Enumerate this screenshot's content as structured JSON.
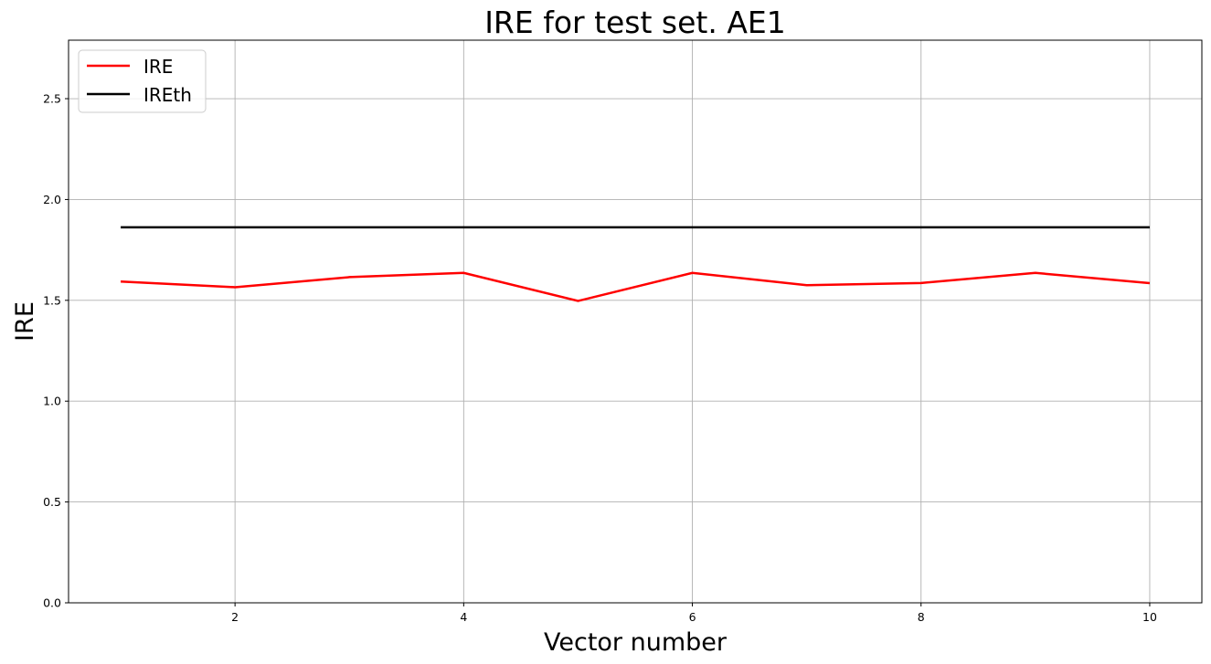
{
  "chart_data": {
    "type": "line",
    "title": "IRE for test set. AE1",
    "xlabel": "Vector number",
    "ylabel": "IRE",
    "xlim": [
      0.544,
      10.456
    ],
    "ylim": [
      0,
      2.79
    ],
    "xticks": [
      2,
      4,
      6,
      8,
      10
    ],
    "yticks": [
      0.0,
      0.5,
      1.0,
      1.5,
      2.0,
      2.5
    ],
    "xtick_labels": [
      "2",
      "4",
      "6",
      "8",
      "10"
    ],
    "ytick_labels": [
      "0.0",
      "0.5",
      "1.0",
      "1.5",
      "2.0",
      "2.5"
    ],
    "grid": true,
    "legend_position": "top-left",
    "x": [
      1,
      2,
      3,
      4,
      5,
      6,
      7,
      8,
      9,
      10
    ],
    "series": [
      {
        "name": "IRE",
        "color": "#ff0000",
        "values": [
          1.593,
          1.565,
          1.615,
          1.636,
          1.497,
          1.636,
          1.575,
          1.586,
          1.636,
          1.585
        ]
      },
      {
        "name": "IREth",
        "color": "#000000",
        "values": [
          1.862,
          1.862,
          1.862,
          1.862,
          1.862,
          1.862,
          1.862,
          1.862,
          1.862,
          1.862
        ]
      }
    ]
  }
}
